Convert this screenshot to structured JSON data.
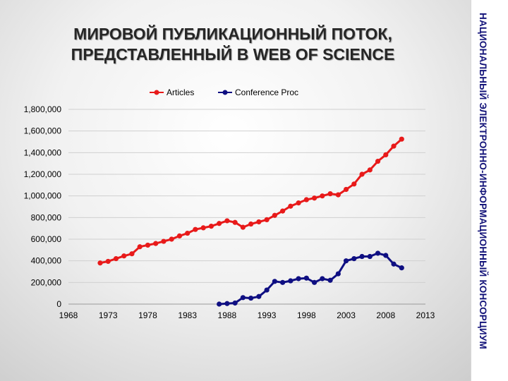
{
  "slide": {
    "title_line1": "МИРОВОЙ ПУБЛИКАЦИОННЫЙ ПОТОК,",
    "title_line2": "ПРЕДСТАВЛЕННЫЙ В  WEB OF SCIENCE",
    "side_label": "НАЦИОНАЛЬНЫЙ ЭЛЕКТРОННО-ИНФОРМАЦИОННЫЙ КОНСОРЦИУМ"
  },
  "chart_data": {
    "type": "line",
    "title": "",
    "xlabel": "",
    "ylabel": "",
    "xlim": [
      1968,
      2013
    ],
    "ylim": [
      0,
      1800000
    ],
    "xticks": [
      1968,
      1973,
      1978,
      1983,
      1988,
      1993,
      1998,
      2003,
      2008,
      2013
    ],
    "yticks": [
      0,
      200000,
      400000,
      600000,
      800000,
      1000000,
      1200000,
      1400000,
      1600000,
      1800000
    ],
    "ytick_labels": [
      "0",
      "200,000",
      "400,000",
      "600,000",
      "800,000",
      "1,000,000",
      "1,200,000",
      "1,400,000",
      "1,600,000",
      "1,800,000"
    ],
    "grid": "horizontal",
    "legend_position": "top",
    "series": [
      {
        "name": "Articles",
        "color": "#e81a1a",
        "marker": "circle",
        "x": [
          1972,
          1973,
          1974,
          1975,
          1976,
          1977,
          1978,
          1979,
          1980,
          1981,
          1982,
          1983,
          1984,
          1985,
          1986,
          1987,
          1988,
          1989,
          1990,
          1991,
          1992,
          1993,
          1994,
          1995,
          1996,
          1997,
          1998,
          1999,
          2000,
          2001,
          2002,
          2003,
          2004,
          2005,
          2006,
          2007,
          2008,
          2009,
          2010
        ],
        "y": [
          380000,
          395000,
          420000,
          445000,
          465000,
          530000,
          545000,
          560000,
          580000,
          600000,
          630000,
          655000,
          690000,
          705000,
          720000,
          745000,
          770000,
          755000,
          710000,
          740000,
          760000,
          780000,
          820000,
          860000,
          905000,
          935000,
          965000,
          980000,
          1000000,
          1020000,
          1010000,
          1060000,
          1110000,
          1200000,
          1240000,
          1320000,
          1380000,
          1460000,
          1525000
        ]
      },
      {
        "name": "Conference Proc",
        "color": "#0f0f82",
        "marker": "circle",
        "x": [
          1987,
          1988,
          1989,
          1990,
          1991,
          1992,
          1993,
          1994,
          1995,
          1996,
          1997,
          1998,
          1999,
          2000,
          2001,
          2002,
          2003,
          2004,
          2005,
          2006,
          2007,
          2008,
          2009,
          2010
        ],
        "y": [
          0,
          5000,
          10000,
          60000,
          55000,
          70000,
          130000,
          210000,
          200000,
          215000,
          235000,
          240000,
          200000,
          235000,
          220000,
          280000,
          400000,
          420000,
          440000,
          440000,
          470000,
          450000,
          370000,
          335000
        ]
      }
    ]
  }
}
